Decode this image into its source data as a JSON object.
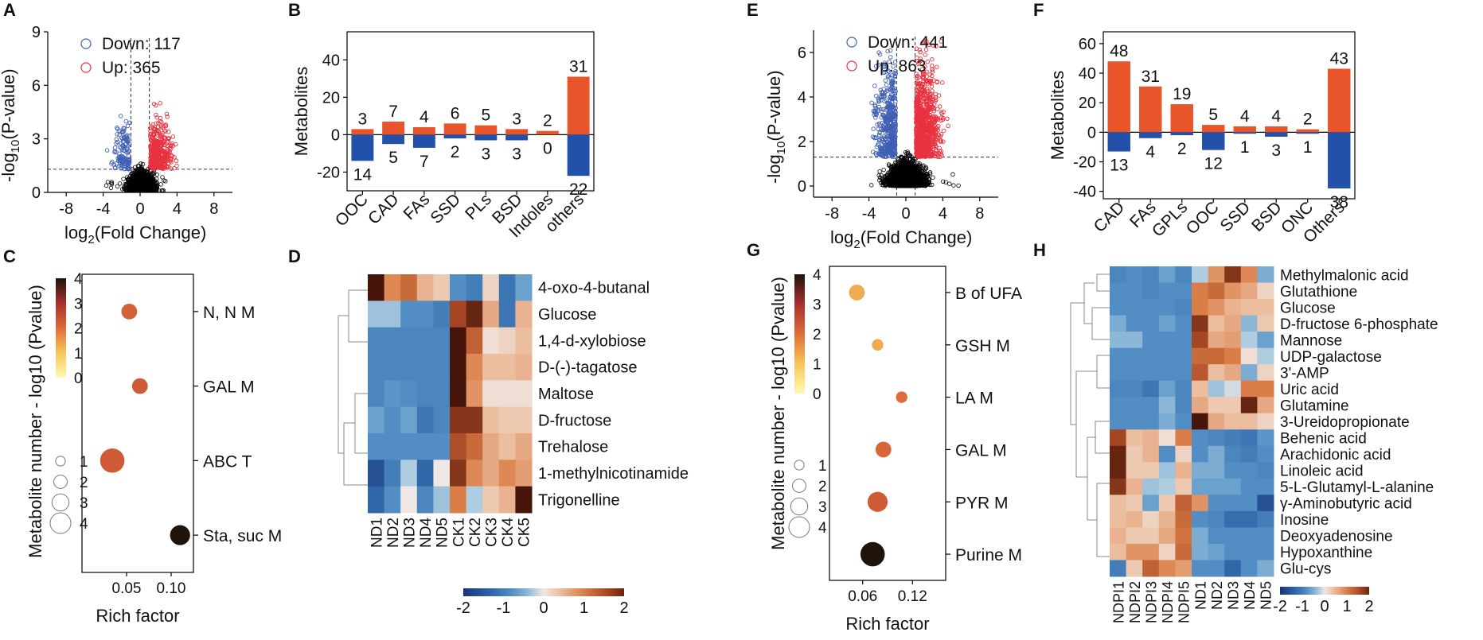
{
  "colors": {
    "up": "#e8552b",
    "down": "#2350a8",
    "volcano_up": "#e8323f",
    "volcano_down": "#3f5fb5",
    "point": "#000000"
  },
  "panel_labels": {
    "A": "A",
    "B": "B",
    "C": "C",
    "D": "D",
    "E": "E",
    "F": "F",
    "G": "G",
    "H": "H"
  },
  "chart_data": [
    {
      "id": "A",
      "type": "scatter",
      "title": "",
      "xlabel_main": "log",
      "xlabel_sub": "2",
      "xlabel_rest": "(Fold Change)",
      "ylabel_main": "-log",
      "ylabel_sub": "10",
      "ylabel_rest": "(P-value)",
      "xlim": [
        -10,
        10
      ],
      "ylim": [
        0,
        9
      ],
      "xticks": [
        "-8",
        "-4",
        "0",
        "4",
        "8"
      ],
      "xtick_values": [
        -8,
        -4,
        0,
        4,
        8
      ],
      "yticks": [
        "0",
        "3",
        "6",
        "9"
      ],
      "ytick_values": [
        0,
        3,
        6,
        9
      ],
      "thresholds": {
        "fc": [
          -1,
          1
        ],
        "p": 1.3
      },
      "legend": [
        {
          "label": "Down: 117",
          "class": "down"
        },
        {
          "label": "Up: 365",
          "class": "up"
        }
      ],
      "down_count": 117,
      "up_count": 365,
      "ns_count": 1700,
      "point_cloud": {
        "x_spread": 1.3,
        "max_y": 5
      }
    },
    {
      "id": "B",
      "type": "bar",
      "ylabel": "Metabolites",
      "categories": [
        "OOC",
        "CAD",
        "FAs",
        "SSD",
        "PLs",
        "BSD",
        "Indoles",
        "others"
      ],
      "series": [
        {
          "name": "Up",
          "values": [
            3,
            7,
            4,
            6,
            5,
            3,
            2,
            31
          ]
        },
        {
          "name": "Down",
          "values": [
            -14,
            -5,
            -7,
            -2,
            -3,
            -3,
            0,
            -22
          ]
        }
      ],
      "up_labels": [
        "3",
        "7",
        "4",
        "6",
        "5",
        "3",
        "2",
        "31"
      ],
      "down_labels": [
        "14",
        "5",
        "7",
        "2",
        "3",
        "3",
        "0",
        "22"
      ],
      "ylim": [
        -30,
        55
      ],
      "yticks": [
        "-20",
        "0",
        "20",
        "40"
      ],
      "ytick_values": [
        -20,
        0,
        20,
        40
      ]
    },
    {
      "id": "C",
      "type": "scatter",
      "subtype": "bubble",
      "xlabel": "Rich factor",
      "ylabel": "Metabolite number - log10 (Pvalue)",
      "xlim": [
        0,
        0.125
      ],
      "xticks": [
        "0.05",
        "0.10"
      ],
      "xtick_values": [
        0.05,
        0.1
      ],
      "pathways": [
        "N, N M",
        "GAL M",
        "ABC T",
        "Sta, suc M"
      ],
      "points": [
        {
          "pathway": "N, N M",
          "rich_factor": 0.053,
          "count": 2,
          "neglog10p": 2.2
        },
        {
          "pathway": "GAL M",
          "rich_factor": 0.065,
          "count": 2,
          "neglog10p": 2.3
        },
        {
          "pathway": "ABC T",
          "rich_factor": 0.034,
          "count": 4,
          "neglog10p": 2.3
        },
        {
          "pathway": "Sta, suc M",
          "rich_factor": 0.11,
          "count": 3,
          "neglog10p": 4.0
        }
      ],
      "colorbar": {
        "min": 0,
        "max": 4,
        "ticks": [
          "0",
          "1",
          "2",
          "3",
          "4"
        ],
        "tick_values": [
          0,
          1,
          2,
          3,
          4
        ]
      },
      "size_legend": [
        "1",
        "2",
        "3",
        "4"
      ]
    },
    {
      "id": "D",
      "type": "heatmap",
      "rows": [
        "4-oxo-4-butanal",
        "Glucose",
        "1,4-d-xylobiose",
        "D-(-)-tagatose",
        "Maltose",
        "D-fructose",
        "Trehalose",
        "1-methylnicotinamide",
        "Trigonelline"
      ],
      "columns": [
        "ND1",
        "ND2",
        "ND3",
        "ND4",
        "ND5",
        "CK1",
        "CK2",
        "CK3",
        "CK4",
        "CK5"
      ],
      "values": [
        [
          2.3,
          0.9,
          1.2,
          0.5,
          0.3,
          -0.8,
          -1.0,
          0.2,
          -1.1,
          -0.6
        ],
        [
          -0.3,
          -0.3,
          -0.8,
          -0.8,
          -1.0,
          1.6,
          2.0,
          0.6,
          -1.1,
          0.5
        ],
        [
          -0.9,
          -0.9,
          -0.9,
          -0.9,
          -0.9,
          2.2,
          1.3,
          0.1,
          0.2,
          0.4
        ],
        [
          -0.9,
          -0.9,
          -0.9,
          -0.9,
          -0.9,
          2.2,
          0.9,
          0.4,
          0.4,
          0.5
        ],
        [
          -0.9,
          -0.7,
          -0.8,
          -0.9,
          -0.9,
          2.2,
          0.8,
          0.1,
          0.1,
          0.1
        ],
        [
          -0.6,
          -0.8,
          -0.6,
          -1.1,
          -0.9,
          1.8,
          1.8,
          0.4,
          0.3,
          0.3
        ],
        [
          -0.8,
          -0.8,
          -0.8,
          -0.8,
          -0.8,
          1.5,
          1.2,
          0.6,
          0.4,
          0.6
        ],
        [
          -1.6,
          -1.0,
          -0.2,
          -1.3,
          0.0,
          1.8,
          0.9,
          0.6,
          0.9,
          0.7
        ],
        [
          -1.3,
          -0.8,
          0.0,
          -0.9,
          -0.3,
          1.0,
          -0.2,
          0.3,
          0.5,
          2.2
        ]
      ],
      "colorbar": {
        "min": -2,
        "max": 2,
        "ticks": [
          "-2",
          "-1",
          "0",
          "1",
          "2"
        ],
        "tick_values": [
          -2,
          -1,
          0,
          1,
          2
        ]
      }
    },
    {
      "id": "E",
      "type": "scatter",
      "title": "",
      "xlabel_main": "log",
      "xlabel_sub": "2",
      "xlabel_rest": "(Fold Change)",
      "ylabel_main": "-log",
      "ylabel_sub": "10",
      "ylabel_rest": "(P-value)",
      "xlim": [
        -10,
        10
      ],
      "ylim": [
        -0.5,
        7
      ],
      "xticks": [
        "-8",
        "-4",
        "0",
        "4",
        "8"
      ],
      "xtick_values": [
        -8,
        -4,
        0,
        4,
        8
      ],
      "yticks": [
        "0",
        "2",
        "4",
        "6"
      ],
      "ytick_values": [
        0,
        2,
        4,
        6
      ],
      "thresholds": {
        "fc": [
          -1,
          1
        ],
        "p": 1.3
      },
      "legend": [
        {
          "label": "Down: 441",
          "class": "down"
        },
        {
          "label": "Up: 863",
          "class": "up"
        }
      ],
      "down_count": 441,
      "up_count": 863,
      "ns_count": 2200,
      "point_cloud": {
        "x_spread": 1.7,
        "max_y": 6.5
      }
    },
    {
      "id": "F",
      "type": "bar",
      "ylabel": "Metabolites",
      "categories": [
        "CAD",
        "FAs",
        "GPLs",
        "OOC",
        "SSD",
        "BSD",
        "ONC",
        "Others"
      ],
      "series": [
        {
          "name": "Up",
          "values": [
            48,
            31,
            19,
            5,
            4,
            4,
            2,
            43
          ]
        },
        {
          "name": "Down",
          "values": [
            -13,
            -4,
            -2,
            -12,
            -1,
            -3,
            -1,
            -38
          ]
        }
      ],
      "up_labels": [
        "48",
        "31",
        "19",
        "5",
        "4",
        "4",
        "2",
        "43"
      ],
      "down_labels": [
        "13",
        "4",
        "2",
        "12",
        "1",
        "3",
        "1",
        "38"
      ],
      "ylim": [
        -45,
        68
      ],
      "yticks": [
        "-40",
        "-20",
        "0",
        "20",
        "40",
        "60"
      ],
      "ytick_values": [
        -40,
        -20,
        0,
        20,
        40,
        60
      ]
    },
    {
      "id": "G",
      "type": "scatter",
      "subtype": "bubble",
      "xlabel": "Rich factor",
      "ylabel": "Metabolite number - log10 (Pvalue)",
      "xlim": [
        0.02,
        0.16
      ],
      "xticks": [
        "0.06",
        "0.12"
      ],
      "xtick_values": [
        0.06,
        0.12
      ],
      "pathways": [
        "B of UFA",
        "GSH M",
        "LA M",
        "GAL M",
        "PYR M",
        "Purine M"
      ],
      "points": [
        {
          "pathway": "B of UFA",
          "rich_factor": 0.053,
          "count": 2,
          "neglog10p": 1.3
        },
        {
          "pathway": "GSH M",
          "rich_factor": 0.078,
          "count": 1,
          "neglog10p": 1.3
        },
        {
          "pathway": "LA M",
          "rich_factor": 0.107,
          "count": 1,
          "neglog10p": 2.0
        },
        {
          "pathway": "GAL M",
          "rich_factor": 0.085,
          "count": 2,
          "neglog10p": 2.1
        },
        {
          "pathway": "PYR M",
          "rich_factor": 0.078,
          "count": 3,
          "neglog10p": 2.3
        },
        {
          "pathway": "Purine M",
          "rich_factor": 0.072,
          "count": 4,
          "neglog10p": 4.0
        }
      ],
      "colorbar": {
        "min": 0,
        "max": 4,
        "ticks": [
          "0",
          "1",
          "2",
          "3",
          "4"
        ],
        "tick_values": [
          0,
          1,
          2,
          3,
          4
        ]
      },
      "size_legend": [
        "1",
        "2",
        "3",
        "4"
      ]
    },
    {
      "id": "H",
      "type": "heatmap",
      "rows": [
        "Methylmalonic acid",
        "Glutathione",
        "Glucose",
        "D-fructose 6-phosphate",
        "Mannose",
        "UDP-galactose",
        "3'-AMP",
        "Uric acid",
        "Glutamine",
        "3-Ureidopropionate",
        "Behenic acid",
        "Arachidonic acid",
        "Linoleic acid",
        "5-L-Glutamyl-L-alanine",
        "γ-Aminobutyric acid",
        "Inosine",
        "Deoxyadenosine",
        "Hypoxanthine",
        "Glu-cys"
      ],
      "columns": [
        "NDPI1",
        "NDPI2",
        "NDPI3",
        "NDPI4",
        "NDPI5",
        "ND1",
        "ND2",
        "ND3",
        "ND4",
        "ND5"
      ],
      "values": [
        [
          -0.9,
          -0.8,
          -0.9,
          -0.6,
          -0.9,
          -0.2,
          0.8,
          1.8,
          0.9,
          -0.5
        ],
        [
          -0.8,
          -0.8,
          -0.9,
          -0.8,
          -0.8,
          1.0,
          1.2,
          0.8,
          0.6,
          0.2
        ],
        [
          -0.8,
          -0.8,
          -0.8,
          -0.8,
          -0.9,
          1.0,
          0.8,
          0.5,
          0.4,
          0.4
        ],
        [
          -0.5,
          -0.8,
          -0.8,
          -0.6,
          -0.8,
          1.8,
          0.4,
          0.6,
          -0.4,
          0.3
        ],
        [
          -0.4,
          -0.4,
          -0.8,
          -0.8,
          -0.8,
          1.6,
          0.6,
          0.7,
          -0.2,
          -0.6
        ],
        [
          -0.8,
          -0.8,
          -0.8,
          -0.8,
          -0.8,
          1.2,
          1.2,
          1.0,
          0.1,
          -0.2
        ],
        [
          -0.8,
          -0.8,
          -0.8,
          -0.8,
          -0.8,
          1.4,
          0.4,
          0.6,
          -0.5,
          0.2
        ],
        [
          -0.9,
          -0.9,
          -1.1,
          -0.6,
          -0.9,
          0.4,
          -0.3,
          -0.1,
          1.0,
          1.0
        ],
        [
          -0.8,
          -0.8,
          -0.8,
          -0.4,
          -0.9,
          0.6,
          0.3,
          0.3,
          2.0,
          0.6
        ],
        [
          -0.8,
          -0.8,
          -0.8,
          -0.5,
          -0.8,
          2.2,
          0.6,
          0.4,
          0.4,
          0.2
        ],
        [
          1.6,
          0.4,
          0.5,
          0.1,
          1.0,
          -0.8,
          -0.9,
          -1.0,
          -1.1,
          -0.7
        ],
        [
          2.0,
          0.3,
          0.5,
          -0.8,
          0.2,
          -0.8,
          -0.5,
          -0.9,
          -1.0,
          -0.8
        ],
        [
          2.0,
          0.3,
          0.3,
          -0.3,
          0.5,
          -0.5,
          -0.5,
          -0.8,
          -0.8,
          -0.9
        ],
        [
          1.8,
          0.5,
          -0.3,
          -0.2,
          0.3,
          -0.6,
          -0.6,
          -0.6,
          -0.8,
          -0.8
        ],
        [
          0.4,
          0.3,
          -0.6,
          0.3,
          1.3,
          0.8,
          -0.8,
          -0.8,
          -0.8,
          -1.6
        ],
        [
          0.4,
          0.5,
          0.2,
          0.5,
          1.2,
          -0.8,
          -0.9,
          -1.2,
          -1.2,
          -1.0
        ],
        [
          0.5,
          0.3,
          0.3,
          0.6,
          1.1,
          -0.5,
          -0.8,
          -0.8,
          -0.8,
          -0.8
        ],
        [
          0.4,
          0.8,
          0.8,
          0.2,
          1.2,
          -0.5,
          -0.6,
          -0.8,
          -0.8,
          -0.8
        ],
        [
          -1.0,
          0.3,
          1.3,
          0.9,
          0.7,
          -0.8,
          -0.8,
          -1.3,
          -0.8,
          -0.5
        ]
      ],
      "colorbar": {
        "min": -2,
        "max": 2,
        "ticks": [
          "-2",
          "-1",
          "0",
          "1",
          "2"
        ],
        "tick_values": [
          -2,
          -1,
          0,
          1,
          2
        ]
      }
    }
  ]
}
